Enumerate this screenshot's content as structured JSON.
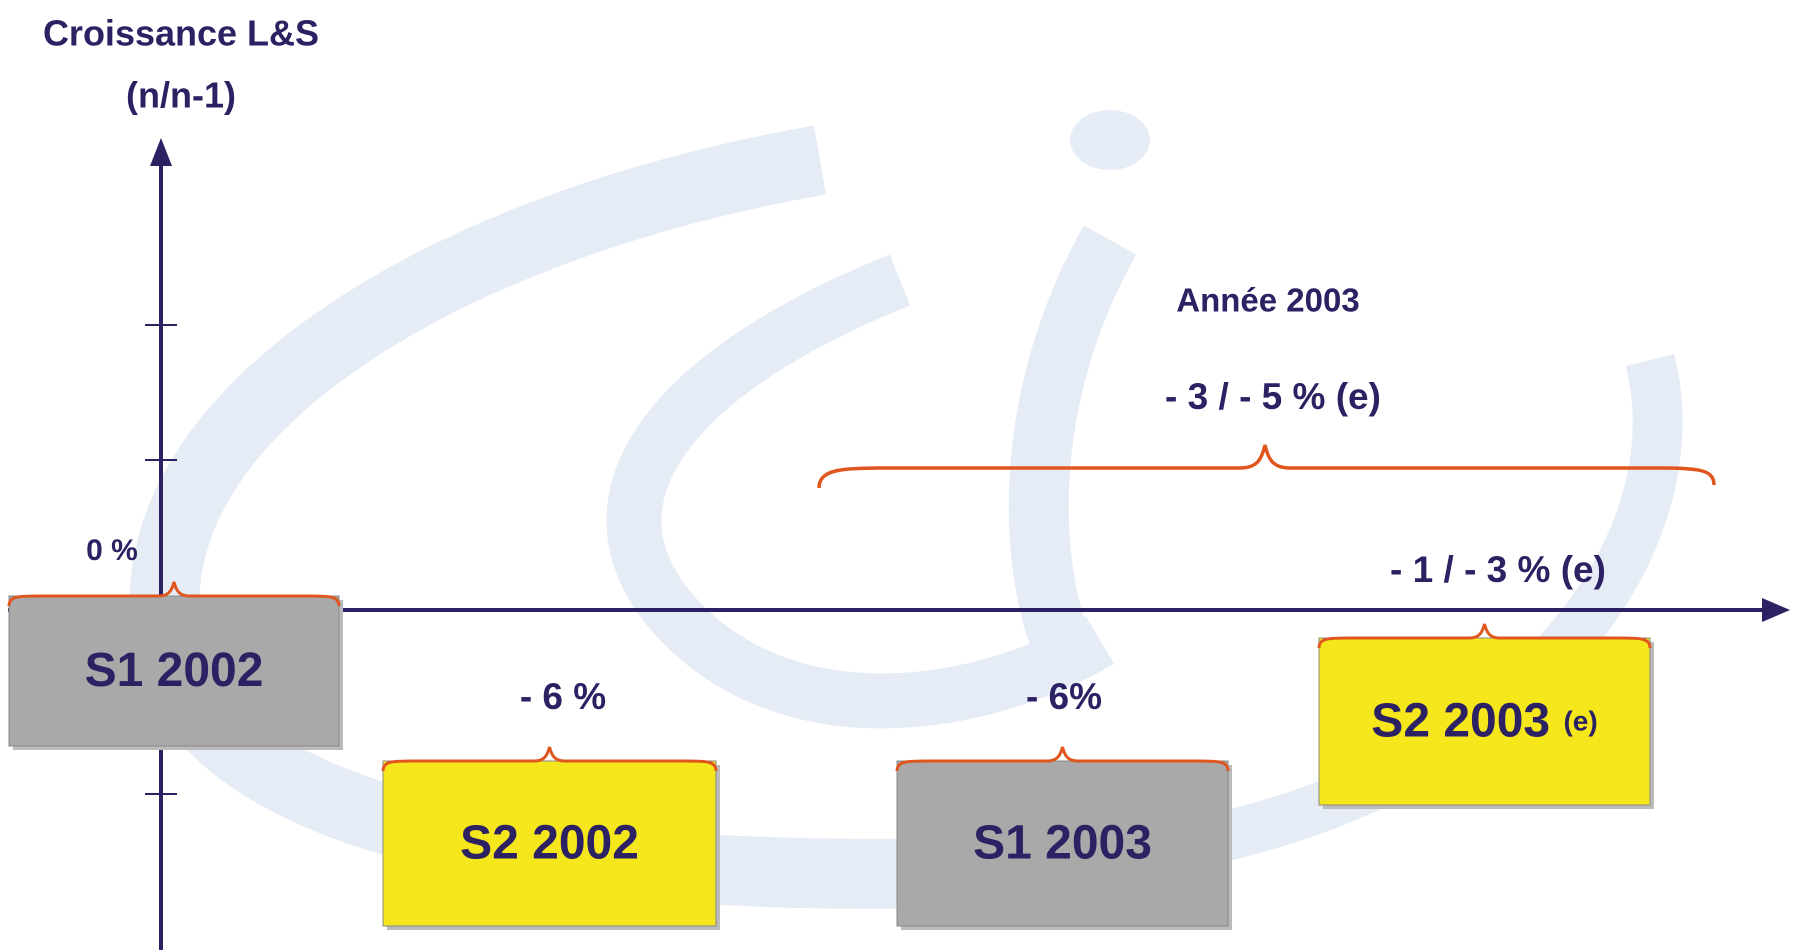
{
  "axis": {
    "title": [
      "Croissance L&S",
      "(n/n-1)"
    ]
  },
  "year_summary": {
    "label": "Année 2003",
    "value": "- 3 / - 5 % (e)"
  },
  "periods": [
    {
      "label": "S1 2002",
      "growth": "0 %",
      "color": "#a9a9a9"
    },
    {
      "label": "S2 2002",
      "growth": "- 6 %",
      "color": "#f6e71c"
    },
    {
      "label": "S1 2003",
      "growth": "- 6%",
      "color": "#a9a9a9"
    },
    {
      "label": "S2 2003",
      "suffix": "(e)",
      "growth": "- 1 / - 3 % (e)",
      "color": "#f6e71c"
    }
  ]
}
